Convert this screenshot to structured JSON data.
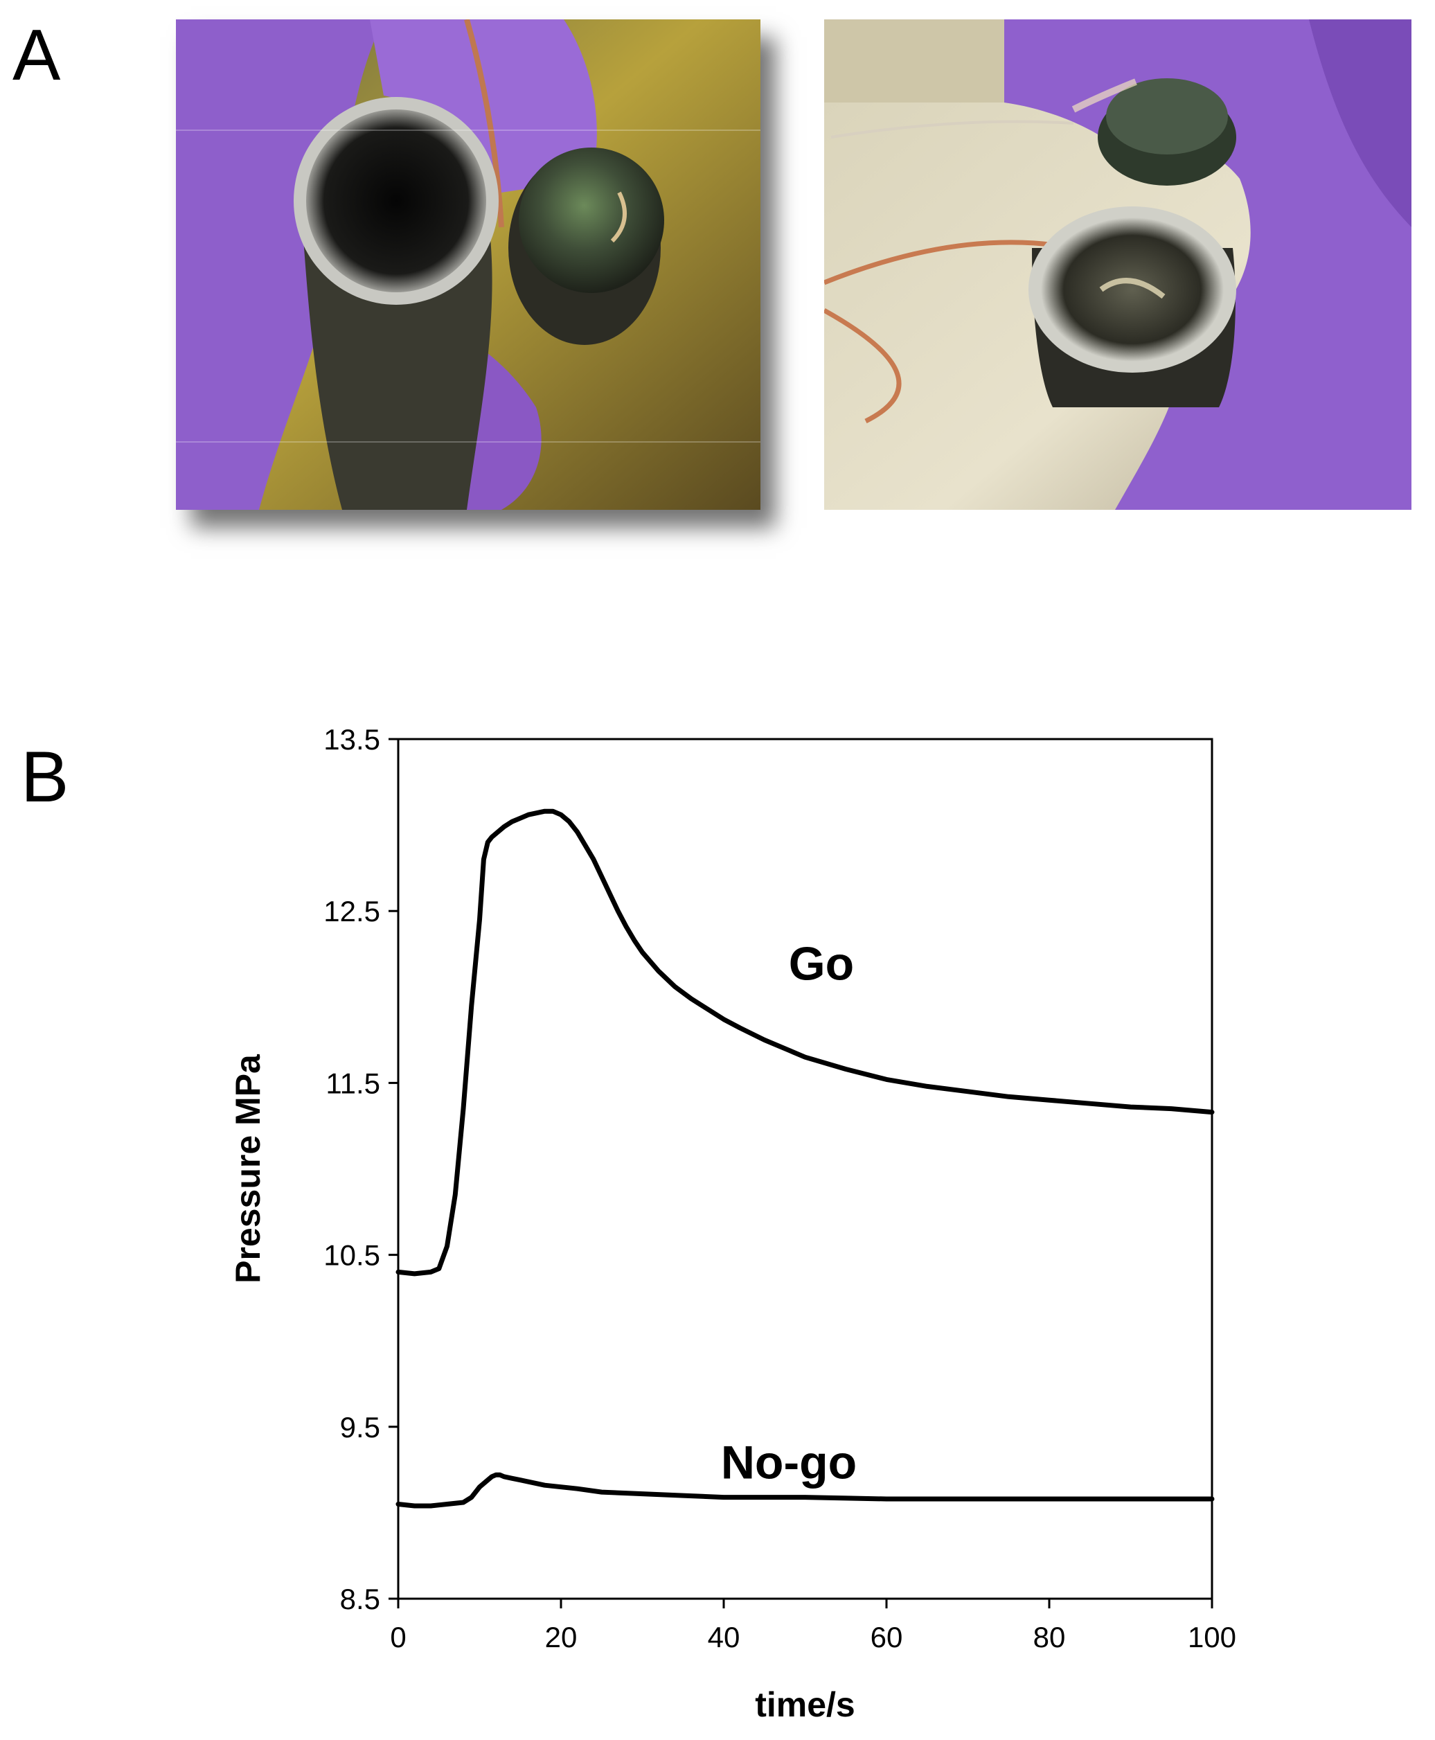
{
  "panels": {
    "a_label": "A",
    "b_label": "B",
    "photo_left_description": "",
    "photo_right_description": ""
  },
  "colors": {
    "glove": "#8a5cc8",
    "background_yellow": "#b8a43a",
    "line": "#000000"
  },
  "chart_data": {
    "type": "line",
    "title": "",
    "xlabel": "time/s",
    "ylabel": "Pressure MPa",
    "xlim": [
      0,
      100
    ],
    "ylim": [
      8.5,
      13.5
    ],
    "xticks": [
      "0",
      "20",
      "40",
      "60",
      "80",
      "100"
    ],
    "yticks": [
      "8.5",
      "9.5",
      "10.5",
      "11.5",
      "12.5",
      "13.5"
    ],
    "grid": false,
    "legend": "none",
    "annotations": [
      {
        "text": "Go",
        "x": 52,
        "y": 12.1
      },
      {
        "text": "No-go",
        "x": 48,
        "y": 9.2
      }
    ],
    "series": [
      {
        "x": [
          0,
          2,
          4,
          5,
          6,
          7,
          8,
          9,
          10,
          10.5,
          11,
          11.5,
          12,
          13,
          14,
          15,
          16,
          17,
          18,
          19,
          20,
          21,
          22,
          23,
          24,
          25,
          26,
          27,
          28,
          29,
          30,
          32,
          34,
          36,
          38,
          40,
          42,
          45,
          48,
          50,
          55,
          60,
          65,
          70,
          75,
          80,
          85,
          90,
          95,
          100
        ],
        "y": [
          10.4,
          10.39,
          10.4,
          10.42,
          10.55,
          10.85,
          11.35,
          11.95,
          12.45,
          12.8,
          12.9,
          12.93,
          12.95,
          12.99,
          13.02,
          13.04,
          13.06,
          13.07,
          13.08,
          13.08,
          13.06,
          13.02,
          12.96,
          12.88,
          12.8,
          12.7,
          12.6,
          12.5,
          12.41,
          12.33,
          12.26,
          12.15,
          12.06,
          11.99,
          11.93,
          11.87,
          11.82,
          11.75,
          11.69,
          11.65,
          11.58,
          11.52,
          11.48,
          11.45,
          11.42,
          11.4,
          11.38,
          11.36,
          11.35,
          11.33
        ]
      },
      {
        "x": [
          0,
          2,
          4,
          6,
          8,
          9,
          10,
          11,
          11.5,
          12,
          12.5,
          13,
          14,
          15,
          16,
          18,
          20,
          22,
          25,
          30,
          35,
          40,
          50,
          60,
          70,
          80,
          90,
          100
        ],
        "y": [
          9.05,
          9.04,
          9.04,
          9.05,
          9.06,
          9.09,
          9.15,
          9.19,
          9.21,
          9.22,
          9.22,
          9.21,
          9.2,
          9.19,
          9.18,
          9.16,
          9.15,
          9.14,
          9.12,
          9.11,
          9.1,
          9.09,
          9.09,
          9.08,
          9.08,
          9.08,
          9.08,
          9.08
        ]
      }
    ]
  }
}
